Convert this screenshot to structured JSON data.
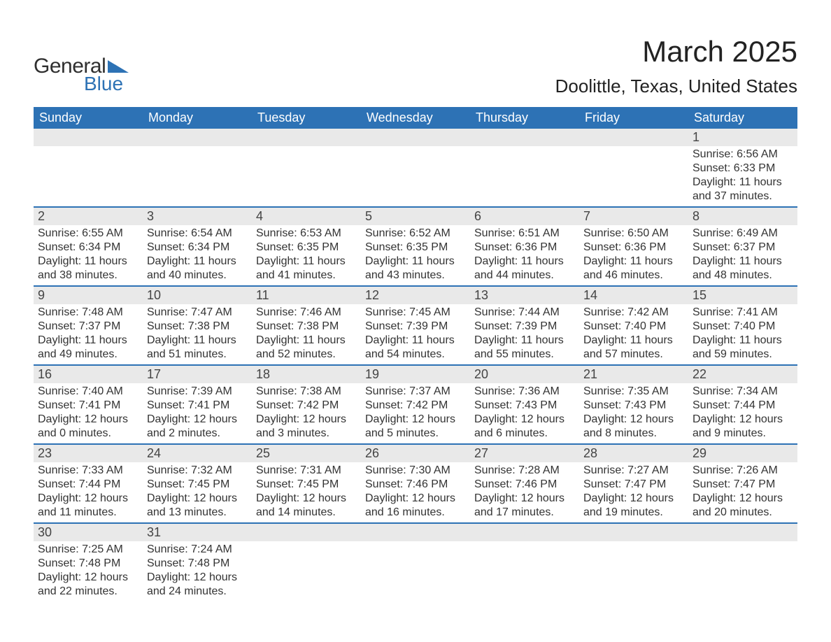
{
  "brand": {
    "general": "General",
    "blue": "Blue",
    "shape_color": "#2d72b5"
  },
  "header": {
    "month": "March 2025",
    "location": "Doolittle, Texas, United States"
  },
  "colors": {
    "header_bg": "#2d72b5",
    "header_text": "#ffffff",
    "daynum_bg": "#e9e9e9",
    "row_border": "#2d72b5",
    "text": "#333333",
    "background": "#ffffff"
  },
  "typography": {
    "title_fontsize": 42,
    "location_fontsize": 26,
    "header_fontsize": 18,
    "daynum_fontsize": 18,
    "detail_fontsize": 16
  },
  "dayHeaders": [
    "Sunday",
    "Monday",
    "Tuesday",
    "Wednesday",
    "Thursday",
    "Friday",
    "Saturday"
  ],
  "weeks": [
    [
      {
        "n": "",
        "sr": "",
        "ss": "",
        "dl": ""
      },
      {
        "n": "",
        "sr": "",
        "ss": "",
        "dl": ""
      },
      {
        "n": "",
        "sr": "",
        "ss": "",
        "dl": ""
      },
      {
        "n": "",
        "sr": "",
        "ss": "",
        "dl": ""
      },
      {
        "n": "",
        "sr": "",
        "ss": "",
        "dl": ""
      },
      {
        "n": "",
        "sr": "",
        "ss": "",
        "dl": ""
      },
      {
        "n": "1",
        "sr": "Sunrise: 6:56 AM",
        "ss": "Sunset: 6:33 PM",
        "dl": "Daylight: 11 hours and 37 minutes."
      }
    ],
    [
      {
        "n": "2",
        "sr": "Sunrise: 6:55 AM",
        "ss": "Sunset: 6:34 PM",
        "dl": "Daylight: 11 hours and 38 minutes."
      },
      {
        "n": "3",
        "sr": "Sunrise: 6:54 AM",
        "ss": "Sunset: 6:34 PM",
        "dl": "Daylight: 11 hours and 40 minutes."
      },
      {
        "n": "4",
        "sr": "Sunrise: 6:53 AM",
        "ss": "Sunset: 6:35 PM",
        "dl": "Daylight: 11 hours and 41 minutes."
      },
      {
        "n": "5",
        "sr": "Sunrise: 6:52 AM",
        "ss": "Sunset: 6:35 PM",
        "dl": "Daylight: 11 hours and 43 minutes."
      },
      {
        "n": "6",
        "sr": "Sunrise: 6:51 AM",
        "ss": "Sunset: 6:36 PM",
        "dl": "Daylight: 11 hours and 44 minutes."
      },
      {
        "n": "7",
        "sr": "Sunrise: 6:50 AM",
        "ss": "Sunset: 6:36 PM",
        "dl": "Daylight: 11 hours and 46 minutes."
      },
      {
        "n": "8",
        "sr": "Sunrise: 6:49 AM",
        "ss": "Sunset: 6:37 PM",
        "dl": "Daylight: 11 hours and 48 minutes."
      }
    ],
    [
      {
        "n": "9",
        "sr": "Sunrise: 7:48 AM",
        "ss": "Sunset: 7:37 PM",
        "dl": "Daylight: 11 hours and 49 minutes."
      },
      {
        "n": "10",
        "sr": "Sunrise: 7:47 AM",
        "ss": "Sunset: 7:38 PM",
        "dl": "Daylight: 11 hours and 51 minutes."
      },
      {
        "n": "11",
        "sr": "Sunrise: 7:46 AM",
        "ss": "Sunset: 7:38 PM",
        "dl": "Daylight: 11 hours and 52 minutes."
      },
      {
        "n": "12",
        "sr": "Sunrise: 7:45 AM",
        "ss": "Sunset: 7:39 PM",
        "dl": "Daylight: 11 hours and 54 minutes."
      },
      {
        "n": "13",
        "sr": "Sunrise: 7:44 AM",
        "ss": "Sunset: 7:39 PM",
        "dl": "Daylight: 11 hours and 55 minutes."
      },
      {
        "n": "14",
        "sr": "Sunrise: 7:42 AM",
        "ss": "Sunset: 7:40 PM",
        "dl": "Daylight: 11 hours and 57 minutes."
      },
      {
        "n": "15",
        "sr": "Sunrise: 7:41 AM",
        "ss": "Sunset: 7:40 PM",
        "dl": "Daylight: 11 hours and 59 minutes."
      }
    ],
    [
      {
        "n": "16",
        "sr": "Sunrise: 7:40 AM",
        "ss": "Sunset: 7:41 PM",
        "dl": "Daylight: 12 hours and 0 minutes."
      },
      {
        "n": "17",
        "sr": "Sunrise: 7:39 AM",
        "ss": "Sunset: 7:41 PM",
        "dl": "Daylight: 12 hours and 2 minutes."
      },
      {
        "n": "18",
        "sr": "Sunrise: 7:38 AM",
        "ss": "Sunset: 7:42 PM",
        "dl": "Daylight: 12 hours and 3 minutes."
      },
      {
        "n": "19",
        "sr": "Sunrise: 7:37 AM",
        "ss": "Sunset: 7:42 PM",
        "dl": "Daylight: 12 hours and 5 minutes."
      },
      {
        "n": "20",
        "sr": "Sunrise: 7:36 AM",
        "ss": "Sunset: 7:43 PM",
        "dl": "Daylight: 12 hours and 6 minutes."
      },
      {
        "n": "21",
        "sr": "Sunrise: 7:35 AM",
        "ss": "Sunset: 7:43 PM",
        "dl": "Daylight: 12 hours and 8 minutes."
      },
      {
        "n": "22",
        "sr": "Sunrise: 7:34 AM",
        "ss": "Sunset: 7:44 PM",
        "dl": "Daylight: 12 hours and 9 minutes."
      }
    ],
    [
      {
        "n": "23",
        "sr": "Sunrise: 7:33 AM",
        "ss": "Sunset: 7:44 PM",
        "dl": "Daylight: 12 hours and 11 minutes."
      },
      {
        "n": "24",
        "sr": "Sunrise: 7:32 AM",
        "ss": "Sunset: 7:45 PM",
        "dl": "Daylight: 12 hours and 13 minutes."
      },
      {
        "n": "25",
        "sr": "Sunrise: 7:31 AM",
        "ss": "Sunset: 7:45 PM",
        "dl": "Daylight: 12 hours and 14 minutes."
      },
      {
        "n": "26",
        "sr": "Sunrise: 7:30 AM",
        "ss": "Sunset: 7:46 PM",
        "dl": "Daylight: 12 hours and 16 minutes."
      },
      {
        "n": "27",
        "sr": "Sunrise: 7:28 AM",
        "ss": "Sunset: 7:46 PM",
        "dl": "Daylight: 12 hours and 17 minutes."
      },
      {
        "n": "28",
        "sr": "Sunrise: 7:27 AM",
        "ss": "Sunset: 7:47 PM",
        "dl": "Daylight: 12 hours and 19 minutes."
      },
      {
        "n": "29",
        "sr": "Sunrise: 7:26 AM",
        "ss": "Sunset: 7:47 PM",
        "dl": "Daylight: 12 hours and 20 minutes."
      }
    ],
    [
      {
        "n": "30",
        "sr": "Sunrise: 7:25 AM",
        "ss": "Sunset: 7:48 PM",
        "dl": "Daylight: 12 hours and 22 minutes."
      },
      {
        "n": "31",
        "sr": "Sunrise: 7:24 AM",
        "ss": "Sunset: 7:48 PM",
        "dl": "Daylight: 12 hours and 24 minutes."
      },
      {
        "n": "",
        "sr": "",
        "ss": "",
        "dl": ""
      },
      {
        "n": "",
        "sr": "",
        "ss": "",
        "dl": ""
      },
      {
        "n": "",
        "sr": "",
        "ss": "",
        "dl": ""
      },
      {
        "n": "",
        "sr": "",
        "ss": "",
        "dl": ""
      },
      {
        "n": "",
        "sr": "",
        "ss": "",
        "dl": ""
      }
    ]
  ]
}
